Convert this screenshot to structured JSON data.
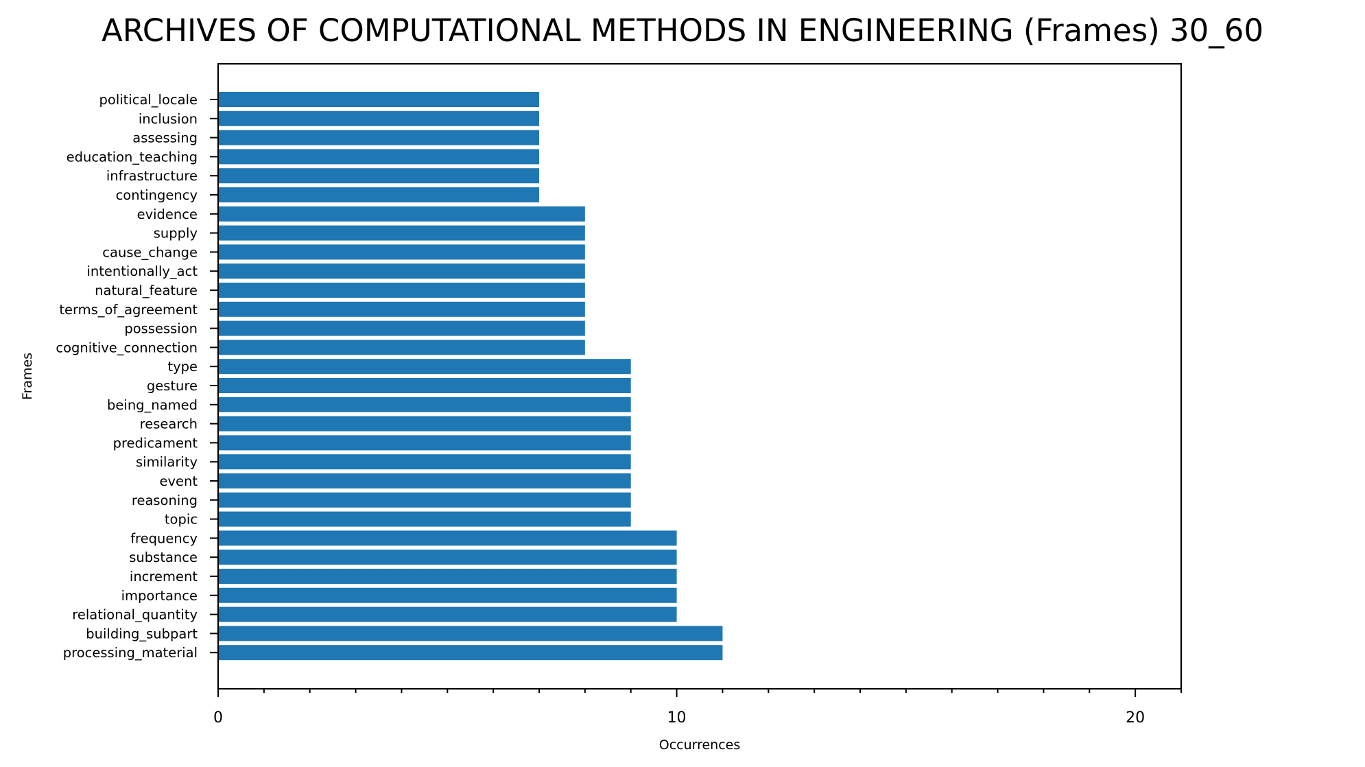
{
  "chart_data": {
    "type": "bar",
    "orientation": "horizontal",
    "title": "ARCHIVES OF COMPUTATIONAL METHODS IN ENGINEERING (Frames) 30_60",
    "xlabel": "Occurrences",
    "ylabel": "Frames",
    "xlim": [
      0,
      21
    ],
    "xticks": [
      0,
      10,
      20
    ],
    "bar_color": "#1f77b4",
    "grid": false,
    "legend": "none",
    "categories": [
      "political_locale",
      "inclusion",
      "assessing",
      "education_teaching",
      "infrastructure",
      "contingency",
      "evidence",
      "supply",
      "cause_change",
      "intentionally_act",
      "natural_feature",
      "terms_of_agreement",
      "possession",
      "cognitive_connection",
      "type",
      "gesture",
      "being_named",
      "research",
      "predicament",
      "similarity",
      "event",
      "reasoning",
      "topic",
      "frequency",
      "substance",
      "increment",
      "importance",
      "relational_quantity",
      "building_subpart",
      "processing_material"
    ],
    "values": [
      7,
      7,
      7,
      7,
      7,
      7,
      8,
      8,
      8,
      8,
      8,
      8,
      8,
      8,
      9,
      9,
      9,
      9,
      9,
      9,
      9,
      9,
      9,
      10,
      10,
      10,
      10,
      10,
      11,
      11
    ]
  }
}
